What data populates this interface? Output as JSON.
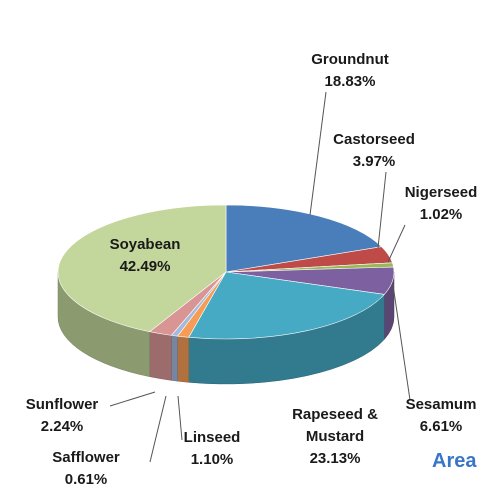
{
  "chart_data": {
    "type": "pie3d",
    "title": "Area",
    "categories": [
      "Groundnut",
      "Castorseed",
      "Nigerseed",
      "Sesamum",
      "Rapeseed & Mustard",
      "Linseed",
      "Safflower",
      "Sunflower",
      "Soyabean"
    ],
    "values": [
      18.83,
      3.97,
      1.02,
      6.61,
      23.13,
      1.1,
      0.61,
      2.24,
      42.49
    ],
    "value_labels": [
      "18.83%",
      "3.97%",
      "1.02%",
      "6.61%",
      "23.13%",
      "1.10%",
      "0.61%",
      "2.24%",
      "42.49%"
    ],
    "colors": [
      "#4a7ebb",
      "#be4b48",
      "#98b954",
      "#7d60a0",
      "#46aac5",
      "#f59d56",
      "#a5b9dd",
      "#d99594",
      "#c3d69b"
    ]
  }
}
